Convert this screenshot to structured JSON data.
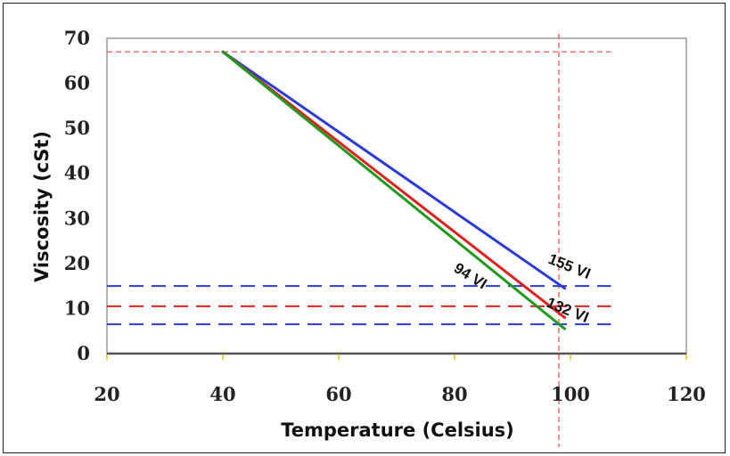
{
  "chart_data": {
    "type": "line",
    "xlabel": "Temperature (Celsius)",
    "ylabel": "Viscosity (cSt)",
    "xlim": [
      20,
      120
    ],
    "ylim": [
      0,
      70
    ],
    "x_ticks": [
      20,
      40,
      60,
      80,
      100,
      120
    ],
    "y_ticks": [
      0,
      10,
      20,
      30,
      40,
      50,
      60,
      70
    ],
    "grid": false,
    "colors": {
      "blue": "#2b3bd6",
      "red": "#e0201c",
      "green": "#1f9a1f",
      "ref_red": "#e04848",
      "plot_border": "#9a9a9a",
      "x_axis": "#555555",
      "tick_mark": "#e8d24a"
    },
    "series": [
      {
        "name": "155 VI",
        "label": "155 VI",
        "color": "blue",
        "x": [
          40,
          99
        ],
        "y": [
          67,
          14.5
        ]
      },
      {
        "name": "132 VI",
        "label": "132 VI",
        "color": "red",
        "x": [
          40,
          99
        ],
        "y": [
          67,
          8
        ]
      },
      {
        "name": "94 VI",
        "label": "94 VI",
        "color": "green",
        "x": [
          40,
          99
        ],
        "y": [
          67,
          5.5
        ]
      }
    ],
    "reference_lines": [
      {
        "orientation": "horizontal",
        "value": 67,
        "color": "ref_red",
        "style": "short-dash",
        "x_extent": [
          20,
          107
        ]
      },
      {
        "orientation": "vertical",
        "value": 98,
        "color": "ref_red",
        "style": "short-dash"
      },
      {
        "orientation": "horizontal",
        "value": 15,
        "color": "blue",
        "style": "long-dash",
        "x_extent": [
          20,
          107
        ]
      },
      {
        "orientation": "horizontal",
        "value": 10.5,
        "color": "red",
        "style": "long-dash",
        "x_extent": [
          20,
          107
        ]
      },
      {
        "orientation": "horizontal",
        "value": 6.5,
        "color": "blue",
        "style": "long-dash",
        "x_extent": [
          20,
          107
        ]
      }
    ]
  }
}
